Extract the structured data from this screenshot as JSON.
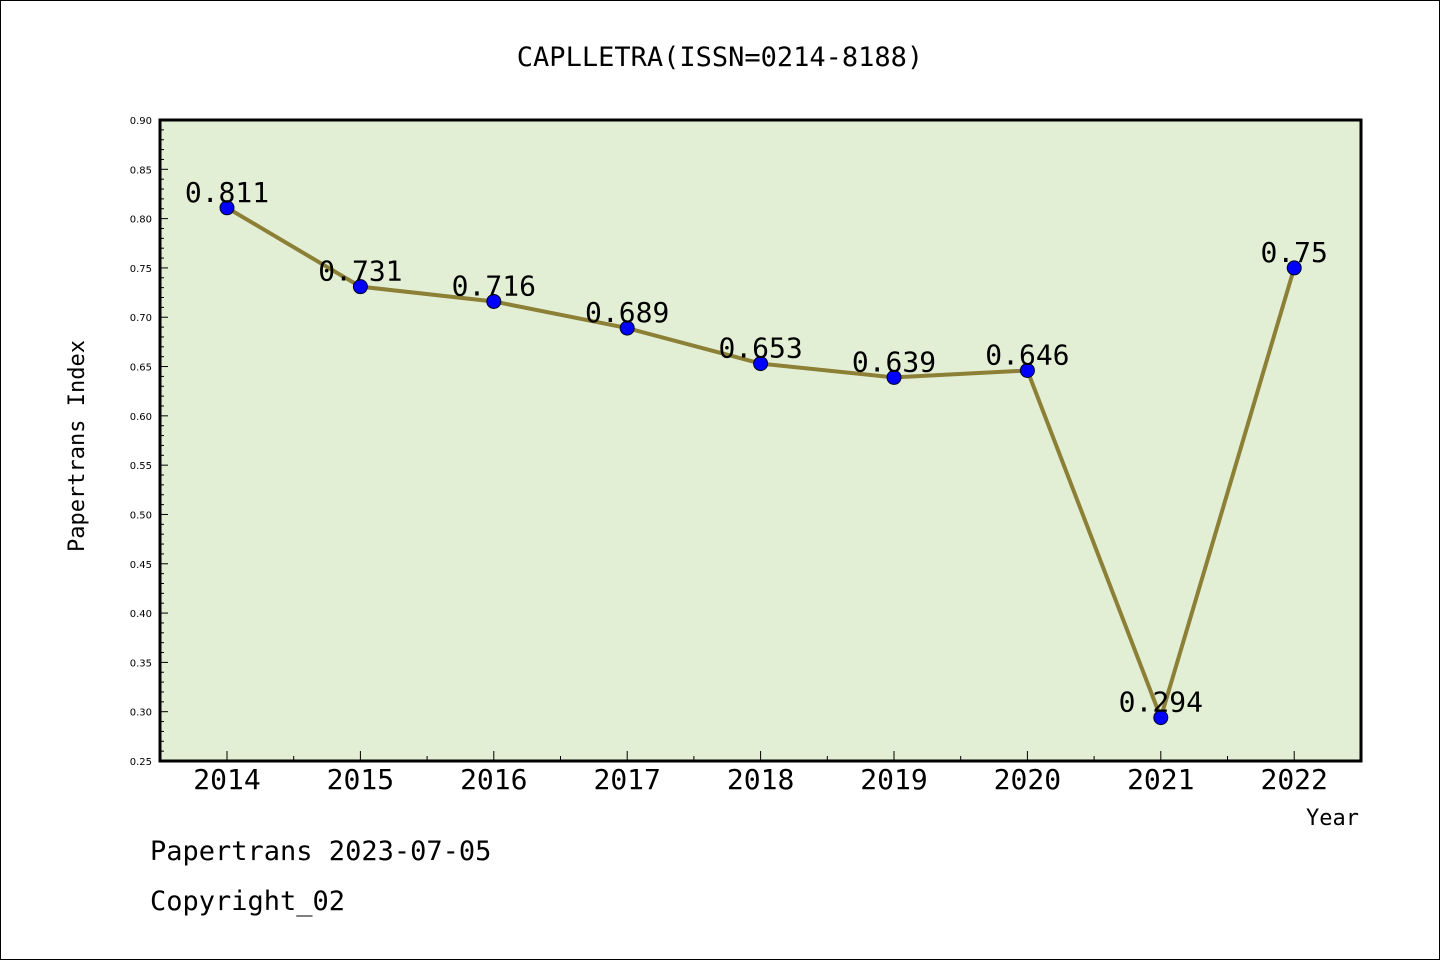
{
  "chart_data": {
    "type": "line",
    "title": "CAPLLETRA(ISSN=0214-8188)",
    "xlabel": "Year",
    "ylabel": "Papertrans Index",
    "categories": [
      "2014",
      "2015",
      "2016",
      "2017",
      "2018",
      "2019",
      "2020",
      "2021",
      "2022"
    ],
    "values": [
      0.811,
      0.731,
      0.716,
      0.689,
      0.653,
      0.639,
      0.646,
      0.294,
      0.75
    ],
    "data_labels": [
      "0.811",
      "0.731",
      "0.716",
      "0.689",
      "0.653",
      "0.639",
      "0.646",
      "0.294",
      "0.75"
    ],
    "ylim": [
      0.25,
      0.9
    ],
    "yticks": [
      "0.25",
      "0.30",
      "0.35",
      "0.40",
      "0.45",
      "0.50",
      "0.55",
      "0.60",
      "0.65",
      "0.70",
      "0.75",
      "0.80",
      "0.85",
      "0.90"
    ],
    "grid": false,
    "colors": {
      "plot_background": "#e2efd5",
      "line": "#8c7f36",
      "marker": "#0000ff"
    }
  },
  "footer": {
    "date_line": "Papertrans 2023-07-05",
    "copyright": "Copyright_02"
  }
}
